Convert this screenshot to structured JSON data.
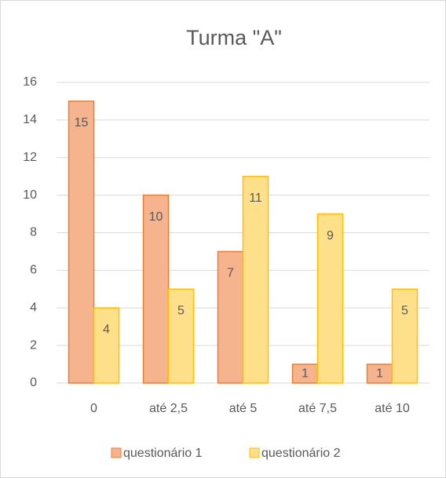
{
  "chart_data": {
    "type": "bar",
    "title": "Turma \"A\"",
    "categories": [
      "0",
      "até 2,5",
      "até 5",
      "até 7,5",
      "até 10"
    ],
    "series": [
      {
        "name": "questionário 1",
        "color": "#f5b38e",
        "border_color": "#ed7d31",
        "values": [
          15,
          10,
          7,
          1,
          1
        ]
      },
      {
        "name": "questionário 2",
        "color": "#ffe08a",
        "border_color": "#ffc000",
        "values": [
          4,
          5,
          11,
          9,
          5
        ]
      }
    ],
    "ylim": [
      0,
      16
    ],
    "yticks": [
      0,
      2,
      4,
      6,
      8,
      10,
      12,
      14,
      16
    ],
    "grid": true,
    "legend": "bottom"
  }
}
